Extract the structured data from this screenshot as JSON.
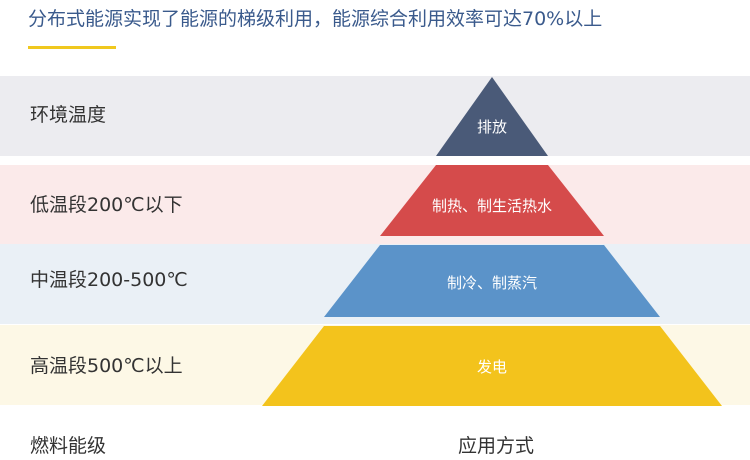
{
  "title": "分布式能源实现了能源的梯级利用，能源综合利用效率可达70%以上",
  "levels": [
    {
      "band_label": "环境温度",
      "use_label": "排放",
      "band_color": "#ececf0",
      "tier_color": "#4a5a78"
    },
    {
      "band_label": "低温段200℃以下",
      "use_label": "制热、制生活热水",
      "band_color": "#fbeaea",
      "tier_color": "#d54b4b"
    },
    {
      "band_label": "中温段200-500℃",
      "use_label": "制冷、制蒸汽",
      "band_color": "#eaf0f6",
      "tier_color": "#5b93c9"
    },
    {
      "band_label": "高温段500℃以上",
      "use_label": "发电",
      "band_color": "#fdf8e6",
      "tier_color": "#f3c31c"
    }
  ],
  "footer": {
    "left_label": "燃料能级",
    "right_label": "应用方式"
  },
  "accent_color": "#f0c81e",
  "title_color": "#3a5a8c"
}
